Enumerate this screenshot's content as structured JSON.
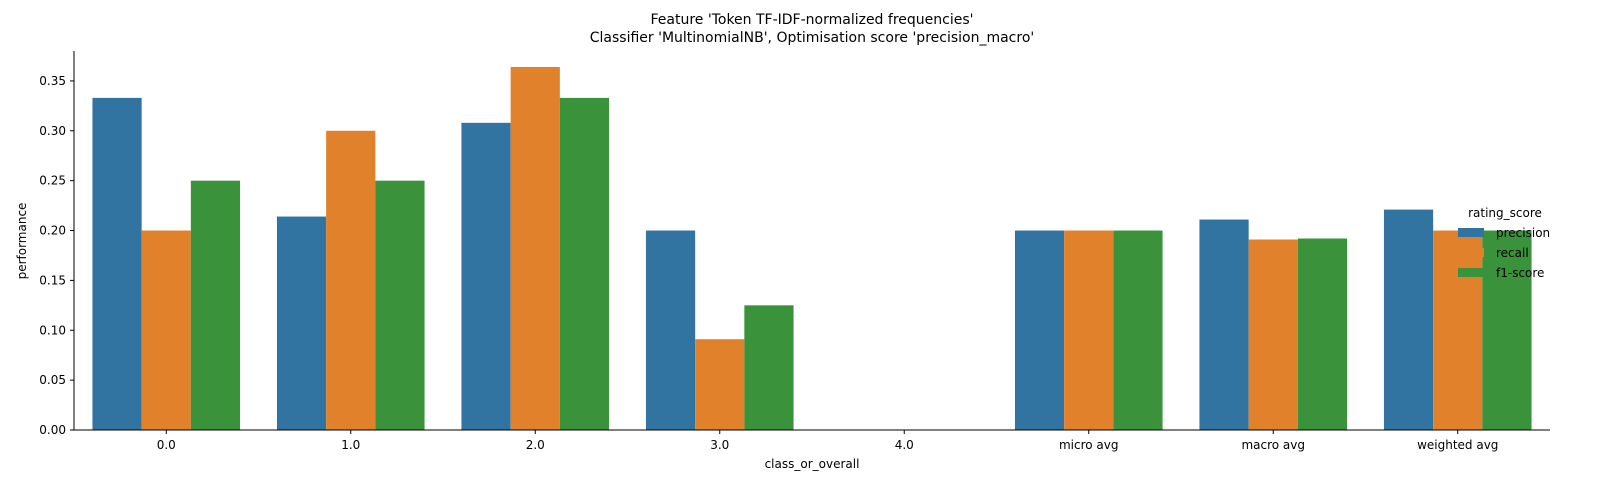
{
  "chart_data": {
    "type": "bar",
    "title_lines": [
      "Feature 'Token TF-IDF-normalized frequencies'",
      "Classifier 'MultinomialNB', Optimisation score 'precision_macro'"
    ],
    "xlabel": "class_or_overall",
    "ylabel": "performance",
    "categories": [
      "0.0",
      "1.0",
      "2.0",
      "3.0",
      "4.0",
      "micro avg",
      "macro avg",
      "weighted avg"
    ],
    "series": [
      {
        "name": "precision",
        "color": "#3274a1",
        "values": [
          0.333,
          0.214,
          0.308,
          0.2,
          0.0,
          0.2,
          0.211,
          0.221
        ]
      },
      {
        "name": "recall",
        "color": "#e1812c",
        "values": [
          0.2,
          0.3,
          0.364,
          0.091,
          0.0,
          0.2,
          0.191,
          0.2
        ]
      },
      {
        "name": "f1-score",
        "color": "#3a923a",
        "values": [
          0.25,
          0.25,
          0.333,
          0.125,
          0.0,
          0.2,
          0.192,
          0.2
        ]
      }
    ],
    "ylim": [
      0,
      0.38
    ],
    "yticks": [
      "0.00",
      "0.05",
      "0.10",
      "0.15",
      "0.20",
      "0.25",
      "0.30",
      "0.35"
    ],
    "legend": {
      "title": "rating_score",
      "placement": "right"
    },
    "grid": false
  }
}
